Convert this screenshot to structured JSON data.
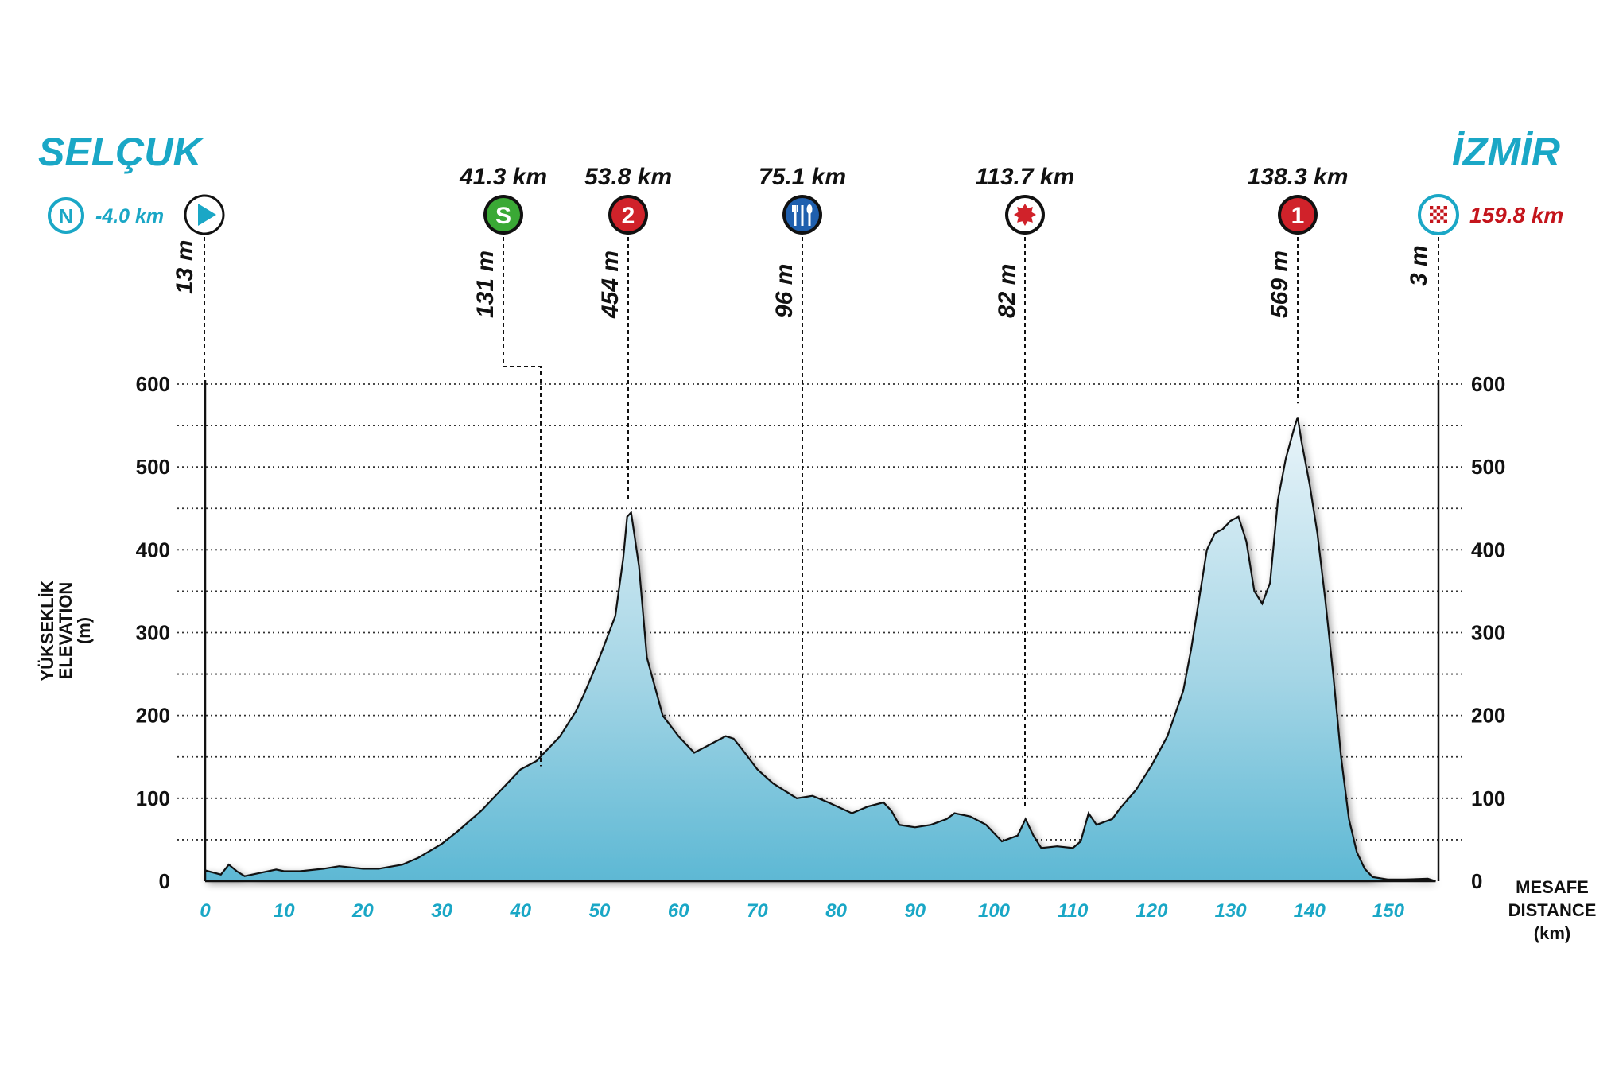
{
  "start_city": "SELÇUK",
  "finish_city": "İZMİR",
  "neutral": {
    "badge": "N",
    "distance": "-4.0 km"
  },
  "finish_distance": "159.8 km",
  "start_elevation": "13 m",
  "finish_elevation": "3 m",
  "colors": {
    "accent": "#1aa7c6",
    "finish_red": "#c4151c",
    "sprint_green": "#3aa935",
    "climb_red": "#d0222a",
    "feed_blue": "#1f5fae",
    "fill_top": "#e9f4f9",
    "fill_bottom": "#5db8d4"
  },
  "markers": [
    {
      "type": "sprint",
      "icon": "sprint-badge-icon",
      "badge": "S",
      "km_label": "41.3 km",
      "elev_label": "131 m",
      "dist": 41.3,
      "elev": 131
    },
    {
      "type": "climb-cat-2",
      "icon": "climb-category-2-icon",
      "badge": "2",
      "km_label": "53.8 km",
      "elev_label": "454 m",
      "dist": 53.8,
      "elev": 454
    },
    {
      "type": "feed",
      "icon": "feed-zone-icon",
      "badge": "",
      "km_label": "75.1 km",
      "elev_label": "96 m",
      "dist": 75.1,
      "elev": 96
    },
    {
      "type": "bonus",
      "icon": "bonus-sprint-icon",
      "badge": "",
      "km_label": "113.7 km",
      "elev_label": "82 m",
      "dist": 113.7,
      "elev": 82
    },
    {
      "type": "climb-cat-1",
      "icon": "climb-category-1-icon",
      "badge": "1",
      "km_label": "138.3 km",
      "elev_label": "569 m",
      "dist": 138.3,
      "elev": 569
    }
  ],
  "axes": {
    "y_title": [
      "YÜKSEKLİK",
      "ELEVATION",
      "(m)"
    ],
    "x_title": [
      "MESAFE",
      "DISTANCE",
      "(km)"
    ]
  },
  "chart_data": {
    "type": "area",
    "xlim": [
      0,
      156
    ],
    "ylim": [
      0,
      600
    ],
    "x_ticks": [
      "0",
      "10",
      "20",
      "30",
      "40",
      "50",
      "60",
      "70",
      "80",
      "90",
      "100",
      "110",
      "120",
      "130",
      "140",
      "150"
    ],
    "y_ticks": [
      "0",
      "100",
      "200",
      "300",
      "400",
      "500",
      "600"
    ],
    "grid": true,
    "x": [
      0,
      2,
      3,
      4,
      5,
      7,
      9,
      10,
      12,
      15,
      17,
      20,
      22,
      25,
      27,
      30,
      32,
      35,
      38,
      40,
      42,
      43,
      45,
      47,
      48,
      50,
      52,
      53,
      53.5,
      54,
      55,
      56,
      58,
      60,
      62,
      63,
      65,
      66,
      67,
      68,
      70,
      72,
      75,
      77,
      79,
      82,
      84,
      86,
      87,
      88,
      90,
      92,
      94,
      95,
      97,
      99,
      101,
      103,
      104,
      105,
      106,
      108,
      110,
      111,
      112,
      113,
      115,
      116,
      118,
      120,
      122,
      124,
      125,
      127,
      128,
      129,
      130,
      131,
      132,
      133,
      134,
      135,
      136,
      137,
      138,
      138.5,
      139,
      140,
      141,
      142,
      143,
      144,
      145,
      146,
      147,
      148,
      150,
      152,
      155,
      156
    ],
    "y": [
      13,
      8,
      20,
      12,
      6,
      10,
      14,
      12,
      12,
      15,
      18,
      15,
      15,
      20,
      28,
      45,
      60,
      85,
      115,
      135,
      145,
      155,
      175,
      205,
      225,
      270,
      320,
      390,
      440,
      445,
      380,
      270,
      200,
      175,
      155,
      160,
      170,
      175,
      172,
      160,
      135,
      118,
      100,
      103,
      95,
      82,
      90,
      95,
      85,
      68,
      65,
      68,
      75,
      82,
      78,
      68,
      48,
      55,
      75,
      55,
      40,
      42,
      40,
      48,
      82,
      68,
      75,
      88,
      110,
      140,
      175,
      230,
      280,
      400,
      420,
      425,
      435,
      440,
      410,
      350,
      335,
      360,
      460,
      510,
      545,
      560,
      530,
      480,
      420,
      340,
      250,
      150,
      75,
      35,
      15,
      5,
      2,
      2,
      3,
      0
    ]
  }
}
